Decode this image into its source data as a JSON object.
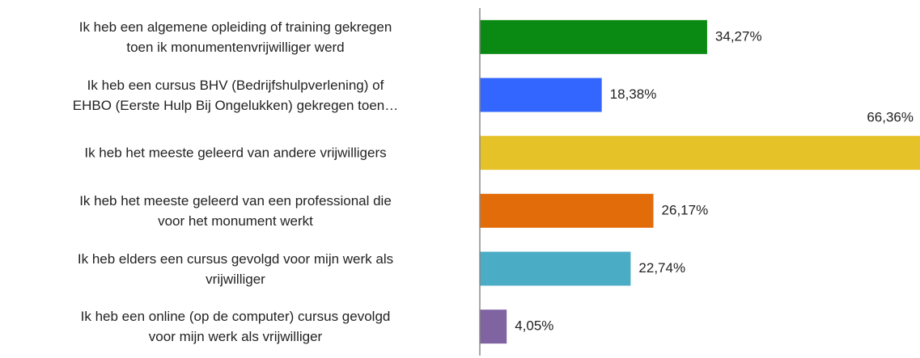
{
  "chart_data": {
    "type": "bar",
    "orientation": "horizontal",
    "categories": [
      "Ik heb een algemene opleiding of training gekregen\ntoen ik monumentenvrijwilliger werd",
      "Ik heb een cursus BHV (Bedrijfshulpverlening) of\nEHBO (Eerste Hulp Bij Ongelukken) gekregen toen…",
      "Ik heb het meeste geleerd van andere vrijwilligers",
      "Ik heb het meeste geleerd van een professional die\nvoor het monument werkt",
      "Ik heb elders een cursus gevolgd voor mijn werk als\nvrijwilliger",
      "Ik heb een online (op de computer) cursus gevolgd\nvoor mijn werk als vrijwilliger"
    ],
    "values": [
      34.27,
      18.38,
      66.36,
      26.17,
      22.74,
      4.05
    ],
    "value_labels": [
      "34,27%",
      "18,38%",
      "66,36%",
      "26,17%",
      "22,74%",
      "4,05%"
    ],
    "colors": [
      "#0a8a12",
      "#3366ff",
      "#e6c229",
      "#e36c0a",
      "#4bacc6",
      "#8064a2"
    ]
  }
}
